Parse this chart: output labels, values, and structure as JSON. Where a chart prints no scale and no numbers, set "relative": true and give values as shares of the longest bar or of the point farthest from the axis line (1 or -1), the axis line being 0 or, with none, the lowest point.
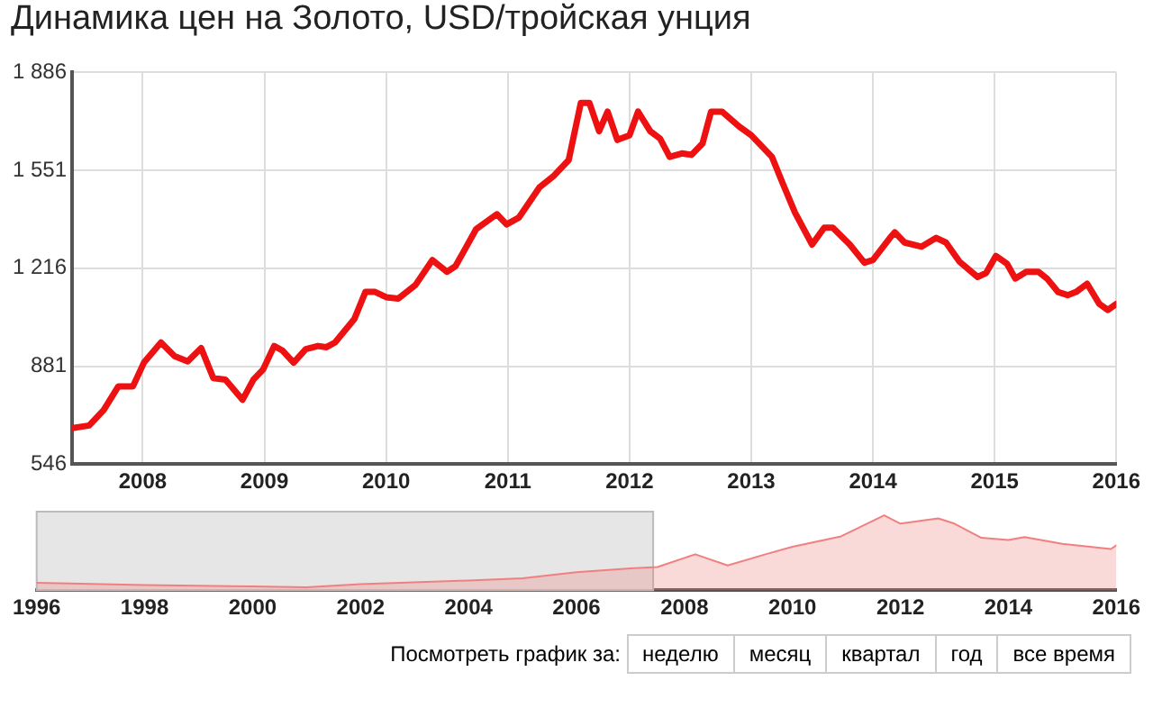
{
  "chart_data": [
    {
      "type": "line",
      "title": "Динамика цен на Золото, USD/тройская унция",
      "grid": true,
      "marker": "none",
      "line_style": "solid",
      "legend": false,
      "xlim": [
        2007.42,
        2016
      ],
      "xticks": [
        2008,
        2009,
        2010,
        2011,
        2012,
        2013,
        2014,
        2015,
        2016
      ],
      "ylim": [
        546,
        1886
      ],
      "yticks": [
        {
          "value": 546,
          "label": "546"
        },
        {
          "value": 881,
          "label": "881"
        },
        {
          "value": 1216,
          "label": "1 216"
        },
        {
          "value": 1551,
          "label": "1 551"
        },
        {
          "value": 1886,
          "label": "1 886"
        }
      ],
      "series": [
        {
          "color": "#ee1111",
          "x": [
            2007.42,
            2007.56,
            2007.68,
            2007.8,
            2007.92,
            2008.01,
            2008.15,
            2008.26,
            2008.37,
            2008.48,
            2008.58,
            2008.68,
            2008.82,
            2008.91,
            2008.99,
            2009.08,
            2009.15,
            2009.24,
            2009.34,
            2009.44,
            2009.51,
            2009.58,
            2009.74,
            2009.83,
            2009.91,
            2010,
            2010.1,
            2010.24,
            2010.38,
            2010.5,
            2010.57,
            2010.74,
            2010.91,
            2010.99,
            2011.09,
            2011.26,
            2011.38,
            2011.5,
            2011.6,
            2011.67,
            2011.75,
            2011.82,
            2011.9,
            2012,
            2012.07,
            2012.17,
            2012.25,
            2012.33,
            2012.43,
            2012.51,
            2012.6,
            2012.67,
            2012.76,
            2012.9,
            2013,
            2013.17,
            2013.26,
            2013.36,
            2013.5,
            2013.6,
            2013.67,
            2013.81,
            2013.93,
            2014,
            2014.14,
            2014.18,
            2014.26,
            2014.4,
            2014.52,
            2014.6,
            2014.71,
            2014.86,
            2014.93,
            2015.01,
            2015.1,
            2015.17,
            2015.26,
            2015.36,
            2015.43,
            2015.52,
            2015.6,
            2015.67,
            2015.76,
            2015.86,
            2015.93,
            2016
          ],
          "values": [
            669,
            678,
            731,
            812,
            812,
            893,
            962,
            916,
            897,
            943,
            840,
            835,
            766,
            835,
            870,
            950,
            934,
            893,
            939,
            950,
            946,
            962,
            1043,
            1135,
            1135,
            1117,
            1112,
            1158,
            1244,
            1204,
            1223,
            1350,
            1401,
            1366,
            1389,
            1493,
            1533,
            1586,
            1782,
            1782,
            1685,
            1752,
            1655,
            1671,
            1752,
            1685,
            1660,
            1597,
            1609,
            1604,
            1643,
            1752,
            1752,
            1701,
            1671,
            1597,
            1505,
            1406,
            1297,
            1355,
            1355,
            1297,
            1235,
            1244,
            1320,
            1339,
            1304,
            1290,
            1320,
            1304,
            1239,
            1186,
            1200,
            1258,
            1232,
            1181,
            1204,
            1204,
            1181,
            1135,
            1124,
            1135,
            1163,
            1094,
            1073,
            1094
          ]
        }
      ]
    },
    {
      "type": "area",
      "relative": true,
      "grid": false,
      "legend": false,
      "tick_labels": "x",
      "xlim": [
        1996,
        2016
      ],
      "xticks": [
        1996,
        1998,
        2000,
        2002,
        2004,
        2006,
        2008,
        2010,
        2012,
        2014,
        2016
      ],
      "bands": [
        {
          "axis": "x",
          "from": 1996,
          "to": 2007.42,
          "color": "#e6e6e6"
        }
      ],
      "annotations": [
        "Посмотреть график за:",
        "неделю",
        "месяц",
        "квартал",
        "год",
        "все время"
      ],
      "series": [
        {
          "color": "#f08080",
          "x": [
            1996,
            1998,
            2000,
            2001,
            2002,
            2004,
            2005,
            2006,
            2007,
            2007.5,
            2008.2,
            2008.8,
            2009.5,
            2010,
            2010.9,
            2011.7,
            2012,
            2012.7,
            2013,
            2013.5,
            2014,
            2014.3,
            2015,
            2015.9,
            2016
          ],
          "values": [
            0.1,
            0.07,
            0.05,
            0.04,
            0.08,
            0.13,
            0.16,
            0.24,
            0.29,
            0.31,
            0.48,
            0.33,
            0.48,
            0.58,
            0.72,
            1,
            0.89,
            0.96,
            0.89,
            0.7,
            0.67,
            0.71,
            0.62,
            0.55,
            0.6
          ]
        }
      ]
    }
  ]
}
